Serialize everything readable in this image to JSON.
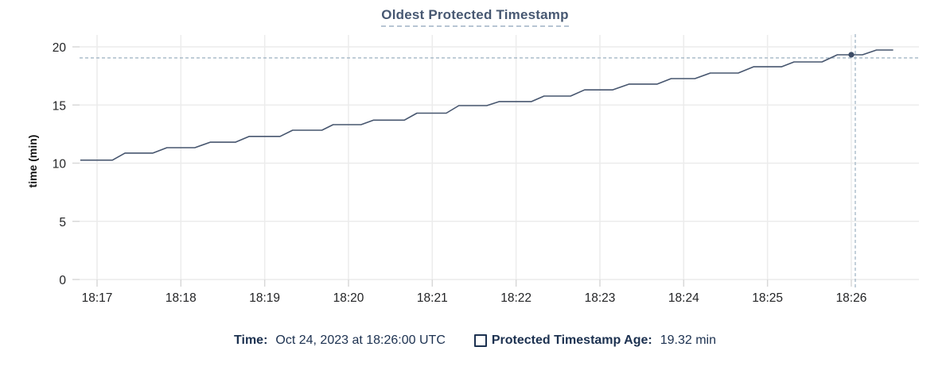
{
  "title": "Oldest Protected Timestamp",
  "colors": {
    "accent": "#475872",
    "line": "#47566f",
    "dot": "#3c4c66",
    "grid": "#ececec",
    "tick_mark": "#d8d8d8",
    "crosshair": "#a3b6c5",
    "tick_text": "#232426",
    "legend_text": "#1c3150"
  },
  "chart_data": {
    "type": "line",
    "title": "Oldest Protected Timestamp",
    "xlabel": "",
    "ylabel": "time (min)",
    "ylim": [
      0,
      20
    ],
    "grid": true,
    "y_ticks": [
      0,
      5,
      10,
      15,
      20
    ],
    "x_tick_labels": [
      "18:17",
      "18:18",
      "18:19",
      "18:20",
      "18:21",
      "18:22",
      "18:23",
      "18:24",
      "18:25",
      "18:26"
    ],
    "x_tick_seconds": [
      0,
      60,
      120,
      180,
      240,
      300,
      360,
      420,
      480,
      540
    ],
    "legend_position": "bottom",
    "series": [
      {
        "name": "Protected Timestamp Age",
        "unit": "min",
        "points": [
          [
            -12,
            10.26
          ],
          [
            11,
            10.26
          ],
          [
            20,
            10.87
          ],
          [
            40,
            10.87
          ],
          [
            50,
            11.33
          ],
          [
            70,
            11.33
          ],
          [
            81,
            11.8
          ],
          [
            99,
            11.8
          ],
          [
            109,
            12.3
          ],
          [
            131,
            12.3
          ],
          [
            140,
            12.83
          ],
          [
            161,
            12.83
          ],
          [
            169,
            13.31
          ],
          [
            189,
            13.31
          ],
          [
            198,
            13.7
          ],
          [
            220,
            13.7
          ],
          [
            229,
            14.3
          ],
          [
            250,
            14.3
          ],
          [
            259,
            14.95
          ],
          [
            279,
            14.95
          ],
          [
            288,
            15.3
          ],
          [
            311,
            15.3
          ],
          [
            320,
            15.77
          ],
          [
            339,
            15.77
          ],
          [
            349,
            16.3
          ],
          [
            369,
            16.3
          ],
          [
            381,
            16.8
          ],
          [
            401,
            16.8
          ],
          [
            411,
            17.27
          ],
          [
            428,
            17.27
          ],
          [
            439,
            17.75
          ],
          [
            459,
            17.75
          ],
          [
            470,
            18.29
          ],
          [
            490,
            18.29
          ],
          [
            499,
            18.7
          ],
          [
            519,
            18.7
          ],
          [
            530,
            19.32
          ],
          [
            548,
            19.32
          ],
          [
            558,
            19.73
          ],
          [
            570,
            19.73
          ]
        ]
      }
    ],
    "highlight_point": {
      "x_label": "18:26",
      "seconds": 540,
      "value": 19.32
    }
  },
  "legend": {
    "time_label": "Time:",
    "time_value": "Oct 24, 2023 at 18:26:00 UTC",
    "series_label": "Protected Timestamp Age:",
    "series_value": "19.32 min"
  }
}
